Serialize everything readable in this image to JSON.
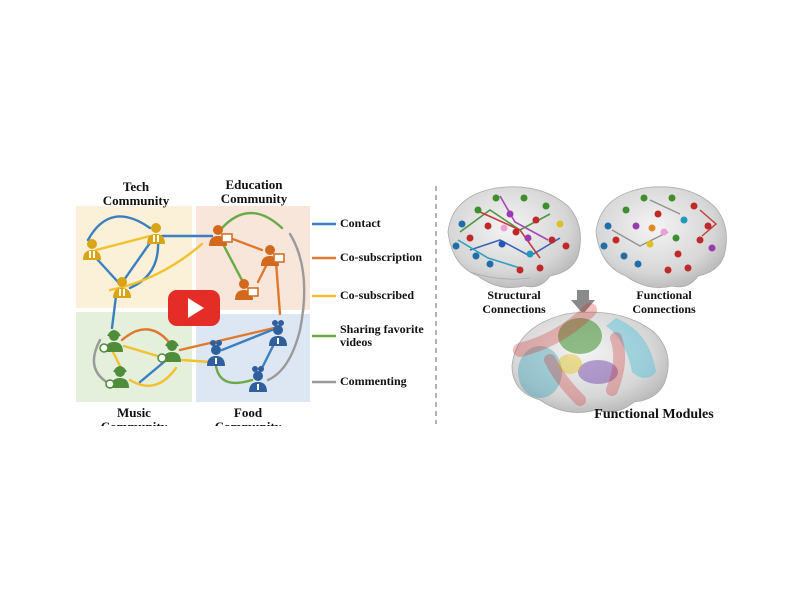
{
  "communities": {
    "tech": "Tech\nCommunity",
    "education": "Education\nCommunity",
    "music": "Music\nCommunity",
    "food": "Food\nCommunity"
  },
  "legend": [
    {
      "label": "Contact",
      "color": "#3c7fc0"
    },
    {
      "label": "Co-subscription",
      "color": "#e0782e"
    },
    {
      "label": "Co-subscribed",
      "color": "#f2c12e"
    },
    {
      "label": "Sharing favorite\nvideos",
      "color": "#6aaa47"
    },
    {
      "label": "Commenting",
      "color": "#9a9a9a"
    }
  ],
  "brain": {
    "structural": "Structural\nConnections",
    "functional": "Functional\nConnections",
    "modules": "Functional Modules"
  },
  "colors": {
    "tech_bg": "#fbf1d8",
    "education_bg": "#f8e6da",
    "music_bg": "#e4efdc",
    "food_bg": "#dde7f3",
    "tech_icon": "#d9a417",
    "education_icon": "#d2691e",
    "music_icon": "#4f8d3a",
    "food_icon": "#2f5f9c",
    "play_button": "#e52d27"
  },
  "icons": [
    "teacher-icon",
    "chef-icon",
    "headphones-user-icon",
    "play-button-icon",
    "down-arrow-icon"
  ]
}
